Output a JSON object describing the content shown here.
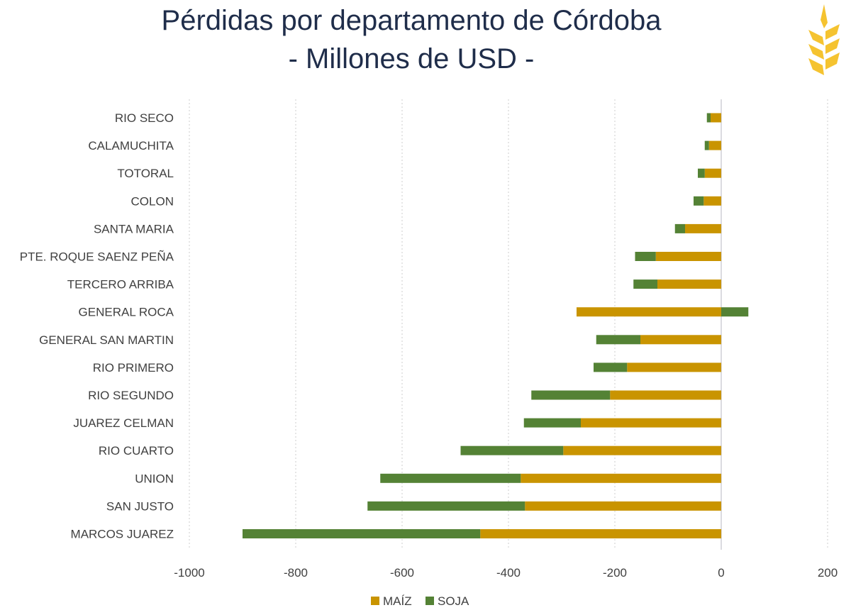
{
  "chart_data": {
    "type": "bar",
    "orientation": "horizontal",
    "stacked": true,
    "title": "Pérdidas por departamento de Córdoba",
    "subtitle": "- Millones de USD -",
    "xlabel": "",
    "ylabel": "",
    "xlim": [
      -1000,
      200
    ],
    "xticks": [
      -1000,
      -800,
      -600,
      -400,
      -200,
      0,
      200
    ],
    "xtick_labels": [
      "-1000",
      "-800",
      "-600",
      "-400",
      "-200",
      "0",
      "200"
    ],
    "grid": "vertical-dotted",
    "legend": "bottom",
    "categories": [
      "RIO SECO",
      "CALAMUCHITA",
      "TOTORAL",
      "COLON",
      "SANTA MARIA",
      "PTE. ROQUE SAENZ PEÑA",
      "TERCERO ARRIBA",
      "GENERAL ROCA",
      "GENERAL SAN MARTIN",
      "RIO PRIMERO",
      "RIO SEGUNDO",
      "JUAREZ CELMAN",
      "RIO CUARTO",
      "UNION",
      "SAN JUSTO",
      "MARCOS JUAREZ"
    ],
    "series": [
      {
        "name": "MAÍZ",
        "color": "#c99400",
        "values": [
          -20,
          -23,
          -31,
          -33,
          -68,
          -123,
          -120,
          -272,
          -152,
          -177,
          -209,
          -264,
          -297,
          -377,
          -369,
          -453
        ]
      },
      {
        "name": "SOJA",
        "color": "#548235",
        "values": [
          -7,
          -8,
          -13,
          -19,
          -19,
          -39,
          -45,
          51,
          -83,
          -63,
          -148,
          -107,
          -193,
          -264,
          -296,
          -447
        ]
      }
    ]
  },
  "logo": {
    "name": "wheat-logo-icon",
    "color": "#f5c330"
  }
}
